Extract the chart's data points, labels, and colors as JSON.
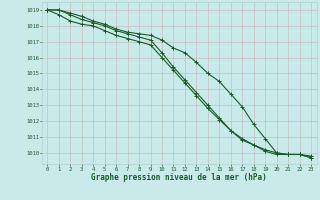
{
  "title": "Graphe pression niveau de la mer (hPa)",
  "background_color": "#c8eae8",
  "grid_color": "#b0d4d0",
  "line_color": "#1a5c2a",
  "xlim": [
    -0.5,
    23.5
  ],
  "ylim": [
    1009.3,
    1019.5
  ],
  "yticks": [
    1010,
    1011,
    1012,
    1013,
    1014,
    1015,
    1016,
    1017,
    1018,
    1019
  ],
  "xticks": [
    0,
    1,
    2,
    3,
    4,
    5,
    6,
    7,
    8,
    9,
    10,
    11,
    12,
    13,
    14,
    15,
    16,
    17,
    18,
    19,
    20,
    21,
    22,
    23
  ],
  "line1": [
    1019.0,
    1019.0,
    1018.8,
    1018.6,
    1018.3,
    1018.1,
    1017.8,
    1017.6,
    1017.5,
    1017.4,
    1017.1,
    1016.6,
    1016.3,
    1015.7,
    1015.0,
    1014.5,
    1013.7,
    1012.9,
    1011.8,
    1010.9,
    1010.0,
    1009.9,
    1009.9,
    1009.8
  ],
  "line2": [
    1019.0,
    1019.0,
    1018.7,
    1018.4,
    1018.2,
    1018.0,
    1017.7,
    1017.5,
    1017.3,
    1017.1,
    1016.3,
    1015.4,
    1014.6,
    1013.8,
    1013.0,
    1012.2,
    1011.4,
    1010.9,
    1010.5,
    1010.1,
    1009.9,
    1009.9,
    1009.9,
    1009.7
  ],
  "line3": [
    1019.0,
    1018.7,
    1018.3,
    1018.1,
    1018.0,
    1017.7,
    1017.4,
    1017.2,
    1017.0,
    1016.8,
    1016.0,
    1015.2,
    1014.4,
    1013.6,
    1012.8,
    1012.1,
    1011.4,
    1010.8,
    1010.5,
    1010.2,
    1010.0,
    1009.9,
    1009.9,
    1009.7
  ]
}
